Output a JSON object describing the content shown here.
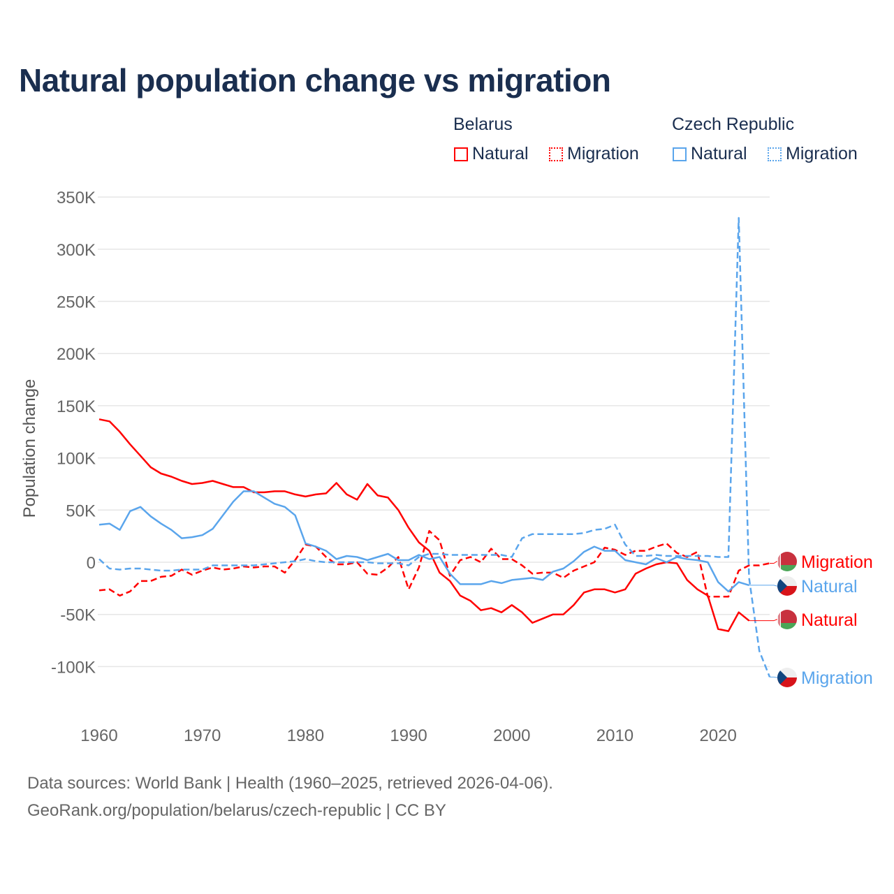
{
  "chart_data": {
    "type": "line",
    "title": "Natural population change vs migration",
    "ylabel": "Population change",
    "xlabel": "",
    "ylim": [
      -120000,
      350000
    ],
    "xlim": [
      1960,
      2025
    ],
    "yticks": [
      350000,
      300000,
      250000,
      200000,
      150000,
      100000,
      50000,
      0,
      -50000,
      -100000
    ],
    "ytick_labels": [
      "350K",
      "300K",
      "250K",
      "200K",
      "150K",
      "100K",
      "50K",
      "0",
      "-50K",
      "-100K"
    ],
    "xticks": [
      1960,
      1970,
      1980,
      1990,
      2000,
      2010,
      2020
    ],
    "xtick_labels": [
      "1960",
      "1970",
      "1980",
      "1990",
      "2000",
      "2010",
      "2020"
    ],
    "grid": true,
    "legend": {
      "placement": "top-right",
      "groups": [
        {
          "label": "Belarus",
          "items": [
            "Natural",
            "Migration"
          ]
        },
        {
          "label": "Czech Republic",
          "items": [
            "Natural",
            "Migration"
          ]
        }
      ]
    },
    "start_year": 1960,
    "series": [
      {
        "name": "Belarus Natural",
        "country": "Belarus",
        "kind": "Natural",
        "label": "Natural",
        "color": "#ff0000",
        "dash": false,
        "values": [
          137000,
          135000,
          125000,
          113000,
          102000,
          91000,
          85000,
          82000,
          78000,
          75000,
          76000,
          78000,
          75000,
          72000,
          72000,
          67000,
          67000,
          68000,
          68000,
          65000,
          63000,
          65000,
          66000,
          76000,
          65000,
          60000,
          75000,
          64000,
          62000,
          50000,
          33000,
          19000,
          11000,
          -10000,
          -18000,
          -32000,
          -37000,
          -46000,
          -44000,
          -48000,
          -41000,
          -48000,
          -58000,
          -54000,
          -50000,
          -50000,
          -41000,
          -29000,
          -26000,
          -26000,
          -29000,
          -26000,
          -11000,
          -6000,
          -2000,
          0,
          -1000,
          -17000,
          -26000,
          -32000,
          -64000,
          -66000,
          -48000,
          -56000
        ]
      },
      {
        "name": "Belarus Migration",
        "country": "Belarus",
        "kind": "Migration",
        "label": "Migration",
        "color": "#ff0000",
        "dash": true,
        "values": [
          -27000,
          -26000,
          -32000,
          -28000,
          -18000,
          -18000,
          -14000,
          -13000,
          -7000,
          -12000,
          -8000,
          -5000,
          -7000,
          -6000,
          -4000,
          -5000,
          -4000,
          -4000,
          -10000,
          2000,
          17000,
          15000,
          5000,
          -2000,
          -2000,
          0,
          -11000,
          -12000,
          -5000,
          5000,
          -26000,
          -5000,
          30000,
          21000,
          -13000,
          2000,
          5000,
          0,
          13000,
          3000,
          3000,
          -3000,
          -11000,
          -10000,
          -10000,
          -15000,
          -8000,
          -4000,
          0,
          14000,
          12000,
          7000,
          11000,
          11000,
          15000,
          18000,
          9000,
          5000,
          10000,
          -33000,
          -33000,
          -33000,
          -8000,
          -3000,
          -3000,
          -1000
        ]
      },
      {
        "name": "Czech Republic Natural",
        "country": "Czech Republic",
        "kind": "Natural",
        "label": "Natural",
        "color": "#5aa5ec",
        "dash": false,
        "values": [
          36000,
          37000,
          31000,
          49000,
          53000,
          44000,
          37000,
          31000,
          23000,
          24000,
          26000,
          32000,
          45000,
          58000,
          68000,
          68000,
          62000,
          56000,
          53000,
          45000,
          18000,
          15000,
          11000,
          3000,
          6000,
          5000,
          2000,
          5000,
          8000,
          2000,
          2000,
          7000,
          3000,
          5000,
          -11000,
          -21000,
          -21000,
          -21000,
          -18000,
          -20000,
          -17000,
          -16000,
          -15000,
          -17000,
          -9000,
          -6000,
          1000,
          10000,
          15000,
          11000,
          11000,
          2000,
          0,
          -2000,
          4000,
          0,
          5000,
          3000,
          2000,
          0,
          -19000,
          -28000,
          -19000,
          -22000
        ]
      },
      {
        "name": "Czech Republic Migration",
        "country": "Czech Republic",
        "kind": "Migration",
        "label": "Migration",
        "color": "#5aa5ec",
        "dash": true,
        "values": [
          3000,
          -6000,
          -7000,
          -6000,
          -6000,
          -7000,
          -8000,
          -8000,
          -7000,
          -7000,
          -7000,
          -3000,
          -3000,
          -3000,
          -3000,
          -3000,
          -2000,
          -1000,
          0,
          1000,
          3000,
          1000,
          0,
          0,
          0,
          0,
          0,
          -1000,
          -1000,
          -1000,
          -3000,
          5000,
          8000,
          8000,
          7000,
          7000,
          7000,
          7000,
          7000,
          7000,
          5000,
          23000,
          27000,
          27000,
          27000,
          27000,
          27000,
          28000,
          31000,
          32000,
          36000,
          17000,
          6000,
          6000,
          7000,
          6000,
          6000,
          6000,
          6000,
          6000,
          5000,
          5000,
          330000,
          -15000,
          -85000,
          -110000
        ]
      }
    ]
  },
  "footer": {
    "line1": "Data sources: World Bank | Health (1960–2025, retrieved 2026-04-06).",
    "line2": "GeoRank.org/population/belarus/czech-republic | CC BY"
  }
}
